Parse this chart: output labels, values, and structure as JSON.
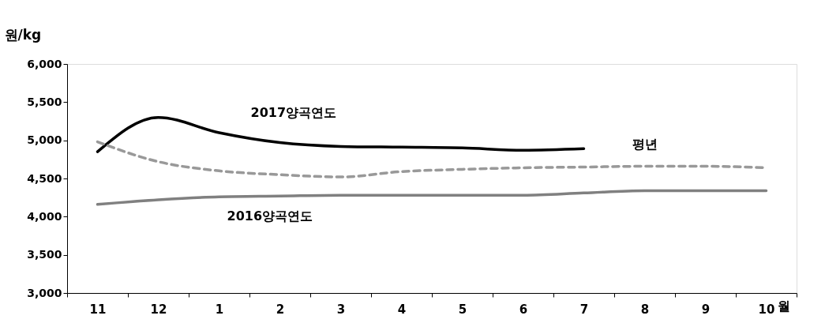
{
  "chart_data": {
    "type": "line",
    "ylabel": "원/kg",
    "xlabel": "월",
    "categories": [
      "11",
      "12",
      "1",
      "2",
      "3",
      "4",
      "5",
      "6",
      "7",
      "8",
      "9",
      "10"
    ],
    "series": [
      {
        "name": "2017양곡연도",
        "color": "#000000",
        "line_style": "solid",
        "values": [
          4850,
          5300,
          5100,
          4970,
          4920,
          4910,
          4900,
          4870,
          4890,
          null,
          null,
          null
        ]
      },
      {
        "name": "평년",
        "color": "#999999",
        "line_style": "dashed",
        "values": [
          4980,
          4720,
          4600,
          4550,
          4520,
          4590,
          4620,
          4640,
          4650,
          4660,
          4660,
          4640
        ]
      },
      {
        "name": "2016양곡연도",
        "color": "#808080",
        "line_style": "solid",
        "values": [
          4160,
          4220,
          4260,
          4270,
          4280,
          4280,
          4280,
          4280,
          4310,
          4340,
          4340,
          4340
        ]
      }
    ],
    "ylim": [
      3000,
      6000
    ],
    "yticks": [
      {
        "value": 3000,
        "label": "3,000"
      },
      {
        "value": 3500,
        "label": "3,500"
      },
      {
        "value": 4000,
        "label": "4,000"
      },
      {
        "value": 4500,
        "label": "4,500"
      },
      {
        "value": 5000,
        "label": "5,000"
      },
      {
        "value": 5500,
        "label": "5,500"
      },
      {
        "value": 6000,
        "label": "6,000"
      }
    ],
    "grid": false
  }
}
